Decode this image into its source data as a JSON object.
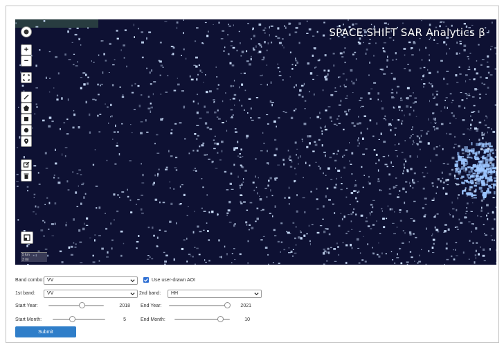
{
  "map": {
    "brand": "SPACE SHIFT SAR Analytics β",
    "controls": [
      {
        "name": "layers-icon"
      },
      {
        "name": "zoom-in-icon",
        "glyph": "+"
      },
      {
        "name": "zoom-out-icon",
        "glyph": "−"
      },
      {
        "name": "fullscreen-icon"
      },
      {
        "name": "draw-polyline-icon"
      },
      {
        "name": "draw-polygon-icon"
      },
      {
        "name": "draw-rectangle-icon"
      },
      {
        "name": "draw-circle-icon"
      },
      {
        "name": "draw-marker-icon"
      },
      {
        "name": "edit-layers-icon"
      },
      {
        "name": "delete-layers-icon"
      },
      {
        "name": "minimap-toggle-icon"
      }
    ],
    "scale": {
      "top": "5 km",
      "bottom": "3 mi"
    },
    "colors": {
      "background": "#0e1133",
      "speckle": "#cfe3ff",
      "city": "#9cc6ff"
    }
  },
  "form": {
    "band_combo": {
      "label": "Band combo:",
      "value": "VV"
    },
    "use_aoi": {
      "label": "Use user-drawn AOI",
      "checked": true
    },
    "first_band": {
      "label": "1st band:",
      "value": "VV"
    },
    "second_band": {
      "label": "2nd band:",
      "value": "HH"
    },
    "start_year": {
      "label": "Start Year:",
      "value": "2018",
      "fraction": 0.6
    },
    "end_year": {
      "label": "End Year:",
      "value": "2021",
      "fraction": 0.96
    },
    "start_month": {
      "label": "Start Month:",
      "value": "5",
      "fraction": 0.37
    },
    "end_month": {
      "label": "End Month:",
      "value": "10",
      "fraction": 0.82
    },
    "submit_label": "Submit",
    "accent": "#2f7ec9"
  }
}
